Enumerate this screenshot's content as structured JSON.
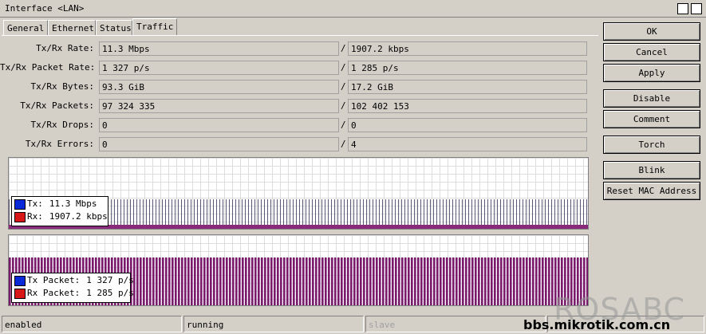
{
  "window": {
    "title": "Interface <LAN>"
  },
  "tabs": [
    "General",
    "Ethernet",
    "Status",
    "Traffic"
  ],
  "separator": "/",
  "fields": [
    {
      "label": "Tx/Rx Rate:",
      "tx": "11.3 Mbps",
      "rx": "1907.2 kbps"
    },
    {
      "label": "Tx/Rx Packet Rate:",
      "tx": "1 327 p/s",
      "rx": "1 285 p/s"
    },
    {
      "label": "Tx/Rx Bytes:",
      "tx": "93.3 GiB",
      "rx": "17.2 GiB"
    },
    {
      "label": "Tx/Rx Packets:",
      "tx": "97 324 335",
      "rx": "102 402 153"
    },
    {
      "label": "Tx/Rx Drops:",
      "tx": "0",
      "rx": "0"
    },
    {
      "label": "Tx/Rx Errors:",
      "tx": "0",
      "rx": "4"
    }
  ],
  "graphs": [
    {
      "legend": [
        {
          "name": "Tx:",
          "value": "11.3 Mbps",
          "color": "#0a2ad8"
        },
        {
          "name": "Rx:",
          "value": "1907.2 kbps",
          "color": "#d81818"
        }
      ]
    },
    {
      "legend": [
        {
          "name": "Tx Packet:",
          "value": "1 327 p/s",
          "color": "#0a2ad8"
        },
        {
          "name": "Rx Packet:",
          "value": "1 285 p/s",
          "color": "#d81818"
        }
      ]
    }
  ],
  "buttons": [
    "OK",
    "Cancel",
    "Apply",
    "Disable",
    "Comment",
    "Torch",
    "Blink",
    "Reset MAC Address"
  ],
  "status": [
    "enabled",
    "running",
    "slave"
  ],
  "watermark": {
    "brand": "ROSABC",
    "url": "bbs.mikrotik.com.cn"
  }
}
